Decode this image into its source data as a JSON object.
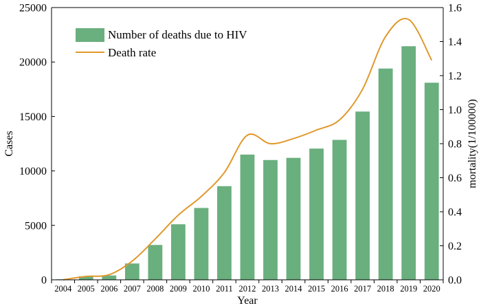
{
  "chart_data": {
    "type": "bar",
    "categories": [
      "2004",
      "2005",
      "2006",
      "2007",
      "2008",
      "2009",
      "2010",
      "2011",
      "2012",
      "2013",
      "2014",
      "2015",
      "2016",
      "2017",
      "2018",
      "2019",
      "2020"
    ],
    "series": [
      {
        "name": "Number of deaths due to HIV",
        "type": "bar",
        "axis": "left",
        "color": "#6aaf7e",
        "values": [
          50,
          320,
          400,
          1500,
          3200,
          5100,
          6600,
          8600,
          11500,
          11000,
          11200,
          12050,
          12850,
          15450,
          19400,
          21450,
          18100
        ]
      },
      {
        "name": "Death rate",
        "type": "line",
        "axis": "right",
        "color": "#e0982b",
        "smooth": true,
        "values": [
          0.0,
          0.02,
          0.03,
          0.11,
          0.24,
          0.38,
          0.49,
          0.63,
          0.85,
          0.8,
          0.83,
          0.88,
          0.94,
          1.12,
          1.43,
          1.53,
          1.29
        ]
      }
    ],
    "xlabel": "Year",
    "ylabel": "Cases",
    "y2label": "mortality(1/100000)",
    "ylim": [
      0,
      25000
    ],
    "y2lim": [
      0,
      1.6
    ],
    "yticks": [
      "0",
      "5000",
      "10000",
      "15000",
      "20000",
      "25000"
    ],
    "y2ticks": [
      "0.0",
      "0.2",
      "0.4",
      "0.6",
      "0.8",
      "1.0",
      "1.2",
      "1.4",
      "1.6"
    ],
    "grid": false,
    "legend_position": "top-left"
  }
}
